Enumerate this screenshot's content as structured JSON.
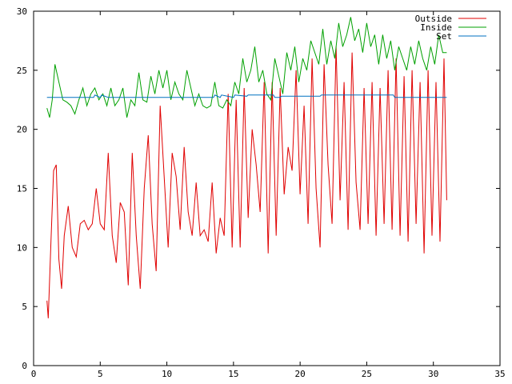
{
  "chart_data": {
    "type": "line",
    "title": "",
    "xlabel": "",
    "ylabel": "",
    "xlim": [
      0,
      35
    ],
    "ylim": [
      0,
      30
    ],
    "xticks": [
      0,
      5,
      10,
      15,
      20,
      25,
      30,
      35
    ],
    "yticks": [
      0,
      5,
      10,
      15,
      20,
      25,
      30
    ],
    "grid": false,
    "legend_position": "top-right",
    "series": [
      {
        "name": "Outside",
        "color": "#e00000",
        "x": [
          1.0,
          1.1,
          1.3,
          1.5,
          1.7,
          1.9,
          2.1,
          2.3,
          2.6,
          2.9,
          3.2,
          3.5,
          3.8,
          4.1,
          4.4,
          4.7,
          5.0,
          5.3,
          5.6,
          5.9,
          6.2,
          6.5,
          6.8,
          7.1,
          7.4,
          7.7,
          8.0,
          8.3,
          8.6,
          8.9,
          9.2,
          9.5,
          9.8,
          10.1,
          10.4,
          10.7,
          11.0,
          11.3,
          11.6,
          11.9,
          12.2,
          12.5,
          12.8,
          13.1,
          13.4,
          13.7,
          14.0,
          14.3,
          14.6,
          14.9,
          15.2,
          15.5,
          15.8,
          16.1,
          16.4,
          16.7,
          17.0,
          17.3,
          17.6,
          17.9,
          18.2,
          18.5,
          18.8,
          19.1,
          19.4,
          19.7,
          20.0,
          20.3,
          20.6,
          20.9,
          21.2,
          21.5,
          21.8,
          22.1,
          22.4,
          22.7,
          23.0,
          23.3,
          23.6,
          23.9,
          24.2,
          24.5,
          24.8,
          25.1,
          25.4,
          25.7,
          26.0,
          26.3,
          26.6,
          26.9,
          27.2,
          27.5,
          27.8,
          28.1,
          28.4,
          28.7,
          29.0,
          29.3,
          29.6,
          29.9,
          30.2,
          30.5,
          30.8,
          31.0
        ],
        "y": [
          5.5,
          4.0,
          10.5,
          16.5,
          17.0,
          9.0,
          6.5,
          11.0,
          13.5,
          10.0,
          9.2,
          12.0,
          12.3,
          11.5,
          12.0,
          15.0,
          12.0,
          11.5,
          18.0,
          11.0,
          8.7,
          13.8,
          13.0,
          6.8,
          18.0,
          11.0,
          6.5,
          15.0,
          19.5,
          12.0,
          8.0,
          22.0,
          16.0,
          10.0,
          18.0,
          16.0,
          11.5,
          18.5,
          13.0,
          11.0,
          15.5,
          11.0,
          11.5,
          10.5,
          15.5,
          9.5,
          12.5,
          11.0,
          23.0,
          10.0,
          22.5,
          10.0,
          23.5,
          12.5,
          20.0,
          17.0,
          13.0,
          24.0,
          9.5,
          24.0,
          11.0,
          23.5,
          14.5,
          18.5,
          16.5,
          25.0,
          14.5,
          22.0,
          12.0,
          26.0,
          15.0,
          10.0,
          25.5,
          17.0,
          12.0,
          27.0,
          14.0,
          24.0,
          11.5,
          26.5,
          15.5,
          11.5,
          23.5,
          12.0,
          24.0,
          11.0,
          23.5,
          12.0,
          25.0,
          11.5,
          26.0,
          11.0,
          24.5,
          10.5,
          25.0,
          12.0,
          24.0,
          9.5,
          25.0,
          11.0,
          24.0,
          10.5,
          26.0,
          14.0
        ]
      },
      {
        "name": "Inside",
        "color": "#00a000",
        "x": [
          1.0,
          1.2,
          1.4,
          1.6,
          1.9,
          2.2,
          2.5,
          2.8,
          3.1,
          3.4,
          3.7,
          4.0,
          4.3,
          4.6,
          4.9,
          5.2,
          5.5,
          5.8,
          6.1,
          6.4,
          6.7,
          7.0,
          7.3,
          7.6,
          7.9,
          8.2,
          8.5,
          8.8,
          9.1,
          9.4,
          9.7,
          10.0,
          10.3,
          10.6,
          10.9,
          11.2,
          11.5,
          11.8,
          12.1,
          12.4,
          12.7,
          13.0,
          13.3,
          13.6,
          13.9,
          14.2,
          14.5,
          14.8,
          15.1,
          15.4,
          15.7,
          16.0,
          16.3,
          16.6,
          16.9,
          17.2,
          17.5,
          17.8,
          18.1,
          18.4,
          18.7,
          19.0,
          19.3,
          19.6,
          19.9,
          20.2,
          20.5,
          20.8,
          21.1,
          21.4,
          21.7,
          22.0,
          22.3,
          22.6,
          22.9,
          23.2,
          23.5,
          23.8,
          24.1,
          24.4,
          24.7,
          25.0,
          25.3,
          25.6,
          25.9,
          26.2,
          26.5,
          26.8,
          27.1,
          27.4,
          27.7,
          28.0,
          28.3,
          28.6,
          28.9,
          29.2,
          29.5,
          29.8,
          30.1,
          30.4,
          30.7,
          31.0
        ],
        "y": [
          21.8,
          21.0,
          22.5,
          25.5,
          24.0,
          22.5,
          22.3,
          22.0,
          21.3,
          22.5,
          23.5,
          22.0,
          23.0,
          23.5,
          22.5,
          23.0,
          22.0,
          23.5,
          22.0,
          22.5,
          23.5,
          21.0,
          22.5,
          22.0,
          24.8,
          22.5,
          22.3,
          24.5,
          23.0,
          25.0,
          23.5,
          25.0,
          22.5,
          24.0,
          23.0,
          22.5,
          25.0,
          23.5,
          22.0,
          23.0,
          22.0,
          21.8,
          22.0,
          24.0,
          22.0,
          21.8,
          22.5,
          22.0,
          24.0,
          23.0,
          26.0,
          24.0,
          25.0,
          27.0,
          24.0,
          25.0,
          23.0,
          22.5,
          26.0,
          24.5,
          23.0,
          26.5,
          25.0,
          27.0,
          24.0,
          26.0,
          25.0,
          27.5,
          26.5,
          25.5,
          28.5,
          25.5,
          27.5,
          26.0,
          29.0,
          27.0,
          28.0,
          29.5,
          27.5,
          28.5,
          26.5,
          29.0,
          27.0,
          28.0,
          25.5,
          28.0,
          26.0,
          27.5,
          25.0,
          27.0,
          26.0,
          25.0,
          27.0,
          25.5,
          27.5,
          26.0,
          25.0,
          27.0,
          25.5,
          28.0,
          26.5,
          26.5
        ]
      },
      {
        "name": "Set",
        "color": "#0070c0",
        "x": [
          1.0,
          4.5,
          4.6,
          5.0,
          5.1,
          5.6,
          5.7,
          13.5,
          13.6,
          14.0,
          14.1,
          15.0,
          15.1,
          16.0,
          16.1,
          18.0,
          18.1,
          18.5,
          18.6,
          21.5,
          21.6,
          27.0,
          27.1,
          31.0
        ],
        "y": [
          22.7,
          22.7,
          22.9,
          22.7,
          22.9,
          22.7,
          22.7,
          22.7,
          22.9,
          22.7,
          22.9,
          22.7,
          22.9,
          22.8,
          22.9,
          22.9,
          22.7,
          22.7,
          22.8,
          22.8,
          22.9,
          22.9,
          22.7,
          22.7
        ]
      }
    ]
  }
}
